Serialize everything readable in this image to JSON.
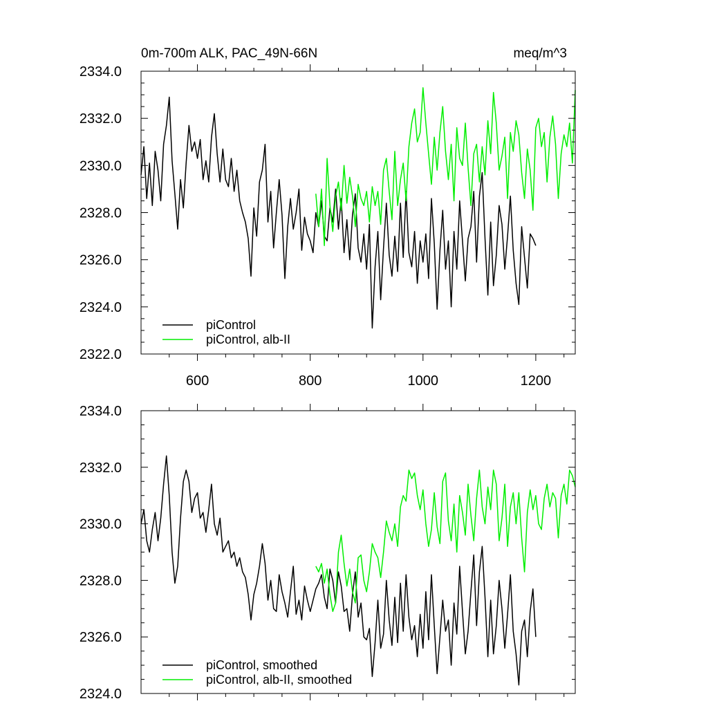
{
  "header": {
    "title": "0m-700m ALK, PAC_49N-66N",
    "units": "meq/m^3"
  },
  "colors": {
    "control": "#000000",
    "alb": "#00ee00"
  },
  "chart_data": [
    {
      "type": "line",
      "title": "0m-700m ALK, PAC_49N-66N",
      "units": "meq/m^3",
      "xlim": [
        500,
        1270
      ],
      "ylim": [
        2322.0,
        2334.0
      ],
      "xticks": [
        600,
        800,
        1000,
        1200
      ],
      "xtick_labels": [
        "600",
        "800",
        "1000",
        "1200"
      ],
      "yticks": [
        2322,
        2324,
        2326,
        2328,
        2330,
        2332,
        2334
      ],
      "ytick_labels": [
        "2322.0",
        "2324.0",
        "2326.0",
        "2328.0",
        "2330.0",
        "2332.0",
        "2334.0"
      ],
      "legend_position": "bottom-left",
      "series": [
        {
          "name": "piControl",
          "color": "#000000",
          "x": [
            500,
            505,
            510,
            515,
            520,
            525,
            530,
            535,
            540,
            545,
            550,
            555,
            560,
            565,
            570,
            575,
            580,
            585,
            590,
            595,
            600,
            605,
            610,
            615,
            620,
            625,
            630,
            635,
            640,
            645,
            650,
            655,
            660,
            665,
            670,
            675,
            680,
            685,
            690,
            695,
            700,
            705,
            710,
            715,
            720,
            725,
            730,
            735,
            740,
            745,
            750,
            755,
            760,
            765,
            770,
            775,
            780,
            785,
            790,
            795,
            800,
            805,
            810,
            815,
            820,
            825,
            830,
            835,
            840,
            845,
            850,
            855,
            860,
            865,
            870,
            875,
            880,
            885,
            890,
            895,
            900,
            905,
            910,
            915,
            920,
            925,
            930,
            935,
            940,
            945,
            950,
            955,
            960,
            965,
            970,
            975,
            980,
            985,
            990,
            995,
            1000,
            1005,
            1010,
            1015,
            1020,
            1025,
            1030,
            1035,
            1040,
            1045,
            1050,
            1055,
            1060,
            1065,
            1070,
            1075,
            1080,
            1085,
            1090,
            1095,
            1100,
            1105,
            1110,
            1115,
            1120,
            1125,
            1130,
            1135,
            1140,
            1145,
            1150,
            1155,
            1160,
            1165,
            1170,
            1175,
            1180,
            1185,
            1190,
            1195,
            1200
          ],
          "y": [
            2329.6,
            2330.8,
            2328.6,
            2330.1,
            2328.3,
            2330.6,
            2329.8,
            2328.5,
            2330.9,
            2331.7,
            2332.9,
            2330.2,
            2328.8,
            2327.3,
            2329.4,
            2328.2,
            2330.1,
            2331.7,
            2330.6,
            2331.0,
            2330.3,
            2331.1,
            2329.4,
            2330.2,
            2329.3,
            2331.2,
            2332.2,
            2330.5,
            2329.3,
            2330.7,
            2329.4,
            2329.1,
            2330.3,
            2328.9,
            2329.8,
            2328.5,
            2328.0,
            2327.6,
            2326.9,
            2325.3,
            2328.2,
            2327.0,
            2329.3,
            2329.8,
            2330.9,
            2327.6,
            2328.9,
            2326.5,
            2328.0,
            2329.4,
            2327.9,
            2325.2,
            2327.4,
            2328.6,
            2327.3,
            2328.0,
            2329.0,
            2326.4,
            2327.8,
            2327.1,
            2326.8,
            2326.3,
            2328.0,
            2327.4,
            2328.5,
            2327.0,
            2326.8,
            2328.2,
            2327.6,
            2329.0,
            2327.3,
            2328.6,
            2326.3,
            2327.7,
            2326.0,
            2327.9,
            2328.8,
            2326.5,
            2325.9,
            2327.1,
            2325.6,
            2327.5,
            2323.1,
            2325.7,
            2327.2,
            2324.3,
            2326.5,
            2328.4,
            2326.2,
            2325.3,
            2327.0,
            2325.5,
            2328.4,
            2326.1,
            2328.9,
            2326.3,
            2325.7,
            2327.2,
            2325.0,
            2326.8,
            2325.9,
            2327.1,
            2325.2,
            2328.6,
            2326.7,
            2323.9,
            2326.4,
            2328.1,
            2325.6,
            2326.8,
            2324.0,
            2327.2,
            2325.6,
            2328.5,
            2326.8,
            2325.1,
            2326.9,
            2327.4,
            2328.9,
            2325.9,
            2328.7,
            2329.7,
            2326.9,
            2324.5,
            2327.6,
            2324.9,
            2326.2,
            2328.3,
            2327.5,
            2325.6,
            2327.0,
            2328.7,
            2326.4,
            2325.0,
            2324.1,
            2327.4,
            2326.1,
            2324.8,
            2327.1,
            2326.9,
            2326.6
          ]
        },
        {
          "name": "piControl, alb-II",
          "color": "#00ee00",
          "x": [
            810,
            815,
            820,
            825,
            830,
            835,
            840,
            845,
            850,
            855,
            860,
            865,
            870,
            875,
            880,
            885,
            890,
            895,
            900,
            905,
            910,
            915,
            920,
            925,
            930,
            935,
            940,
            945,
            950,
            955,
            960,
            965,
            970,
            975,
            980,
            985,
            990,
            995,
            1000,
            1005,
            1010,
            1015,
            1020,
            1025,
            1030,
            1035,
            1040,
            1045,
            1050,
            1055,
            1060,
            1065,
            1070,
            1075,
            1080,
            1085,
            1090,
            1095,
            1100,
            1105,
            1110,
            1115,
            1120,
            1125,
            1130,
            1135,
            1140,
            1145,
            1150,
            1155,
            1160,
            1165,
            1170,
            1175,
            1180,
            1185,
            1190,
            1195,
            1200,
            1205,
            1210,
            1215,
            1220,
            1225,
            1230,
            1235,
            1240,
            1245,
            1250,
            1255,
            1260,
            1265,
            1270
          ],
          "y": [
            2328.8,
            2327.4,
            2329.0,
            2326.6,
            2330.3,
            2328.3,
            2327.2,
            2328.7,
            2329.3,
            2328.1,
            2330.0,
            2328.4,
            2329.5,
            2328.7,
            2327.4,
            2329.2,
            2328.6,
            2328.3,
            2328.9,
            2327.6,
            2329.1,
            2328.3,
            2328.9,
            2327.5,
            2329.8,
            2330.3,
            2328.9,
            2327.7,
            2330.6,
            2328.3,
            2329.4,
            2330.1,
            2328.5,
            2330.8,
            2331.8,
            2332.4,
            2331.0,
            2331.4,
            2333.3,
            2331.8,
            2330.5,
            2329.2,
            2331.2,
            2329.8,
            2331.4,
            2332.5,
            2330.6,
            2329.4,
            2330.9,
            2328.5,
            2331.6,
            2330.3,
            2330.0,
            2331.8,
            2329.9,
            2328.3,
            2330.5,
            2330.9,
            2329.3,
            2330.8,
            2329.6,
            2331.9,
            2330.5,
            2333.1,
            2331.8,
            2329.8,
            2330.4,
            2331.2,
            2328.6,
            2331.4,
            2330.6,
            2331.9,
            2331.3,
            2329.7,
            2328.6,
            2330.7,
            2329.8,
            2328.1,
            2331.6,
            2332.0,
            2330.8,
            2331.4,
            2329.3,
            2331.2,
            2332.1,
            2330.9,
            2328.6,
            2330.5,
            2331.3,
            2330.8,
            2331.8,
            2330.1,
            2333.2
          ]
        }
      ]
    },
    {
      "type": "line",
      "xlim": [
        500,
        1270
      ],
      "ylim": [
        2324.0,
        2334.0
      ],
      "xticks": [
        600,
        800,
        1000,
        1200
      ],
      "yticks": [
        2324,
        2326,
        2328,
        2330,
        2332,
        2334
      ],
      "ytick_labels": [
        "2324.0",
        "2326.0",
        "2328.0",
        "2330.0",
        "2332.0",
        "2334.0"
      ],
      "legend_position": "bottom-left",
      "series": [
        {
          "name": "piControl, smoothed",
          "color": "#000000",
          "x": [
            500,
            505,
            510,
            515,
            520,
            525,
            530,
            535,
            540,
            545,
            550,
            555,
            560,
            565,
            570,
            575,
            580,
            585,
            590,
            595,
            600,
            605,
            610,
            615,
            620,
            625,
            630,
            635,
            640,
            645,
            650,
            655,
            660,
            665,
            670,
            675,
            680,
            685,
            690,
            695,
            700,
            705,
            710,
            715,
            720,
            725,
            730,
            735,
            740,
            745,
            750,
            755,
            760,
            765,
            770,
            775,
            780,
            785,
            790,
            795,
            800,
            805,
            810,
            815,
            820,
            825,
            830,
            835,
            840,
            845,
            850,
            855,
            860,
            865,
            870,
            875,
            880,
            885,
            890,
            895,
            900,
            905,
            910,
            915,
            920,
            925,
            930,
            935,
            940,
            945,
            950,
            955,
            960,
            965,
            970,
            975,
            980,
            985,
            990,
            995,
            1000,
            1005,
            1010,
            1015,
            1020,
            1025,
            1030,
            1035,
            1040,
            1045,
            1050,
            1055,
            1060,
            1065,
            1070,
            1075,
            1080,
            1085,
            1090,
            1095,
            1100,
            1105,
            1110,
            1115,
            1120,
            1125,
            1130,
            1135,
            1140,
            1145,
            1150,
            1155,
            1160,
            1165,
            1170,
            1175,
            1180,
            1185,
            1190,
            1195,
            1200
          ],
          "y": [
            2330.0,
            2330.5,
            2329.4,
            2329.0,
            2329.8,
            2330.4,
            2329.4,
            2330.2,
            2331.4,
            2332.4,
            2331.0,
            2329.0,
            2327.9,
            2328.5,
            2330.2,
            2331.5,
            2331.9,
            2331.5,
            2330.4,
            2330.9,
            2331.1,
            2330.2,
            2330.4,
            2329.7,
            2330.5,
            2331.4,
            2330.0,
            2329.6,
            2330.2,
            2329.0,
            2329.2,
            2329.4,
            2328.8,
            2329.0,
            2328.5,
            2328.8,
            2328.3,
            2328.1,
            2327.5,
            2326.6,
            2327.5,
            2327.9,
            2328.5,
            2329.3,
            2328.6,
            2327.3,
            2328.0,
            2327.0,
            2326.9,
            2328.2,
            2327.6,
            2327.2,
            2326.7,
            2327.6,
            2328.5,
            2326.8,
            2327.3,
            2326.6,
            2327.8,
            2327.3,
            2326.9,
            2327.3,
            2327.7,
            2327.9,
            2328.2,
            2327.4,
            2327.0,
            2328.4,
            2328.0,
            2327.2,
            2328.3,
            2327.8,
            2326.9,
            2327.0,
            2326.2,
            2327.5,
            2328.3,
            2326.7,
            2327.2,
            2326.0,
            2325.9,
            2326.3,
            2324.6,
            2325.8,
            2327.3,
            2325.6,
            2326.1,
            2328.0,
            2326.6,
            2325.7,
            2327.4,
            2325.8,
            2327.9,
            2326.2,
            2328.2,
            2326.7,
            2325.9,
            2326.4,
            2325.3,
            2326.8,
            2325.6,
            2327.6,
            2325.9,
            2328.2,
            2326.4,
            2324.7,
            2326.0,
            2327.3,
            2326.2,
            2326.6,
            2325.0,
            2327.2,
            2326.1,
            2328.5,
            2326.9,
            2325.4,
            2326.2,
            2327.6,
            2328.9,
            2326.4,
            2328.3,
            2329.2,
            2327.4,
            2325.3,
            2327.3,
            2325.4,
            2326.4,
            2328.0,
            2327.0,
            2325.6,
            2326.8,
            2328.2,
            2326.2,
            2325.4,
            2324.3,
            2326.2,
            2326.6,
            2325.3,
            2326.9,
            2327.7,
            2326.0
          ]
        },
        {
          "name": "piControl, alb-II, smoothed",
          "color": "#00ee00",
          "x": [
            810,
            815,
            820,
            825,
            830,
            835,
            840,
            845,
            850,
            855,
            860,
            865,
            870,
            875,
            880,
            885,
            890,
            895,
            900,
            905,
            910,
            915,
            920,
            925,
            930,
            935,
            940,
            945,
            950,
            955,
            960,
            965,
            970,
            975,
            980,
            985,
            990,
            995,
            1000,
            1005,
            1010,
            1015,
            1020,
            1025,
            1030,
            1035,
            1040,
            1045,
            1050,
            1055,
            1060,
            1065,
            1070,
            1075,
            1080,
            1085,
            1090,
            1095,
            1100,
            1105,
            1110,
            1115,
            1120,
            1125,
            1130,
            1135,
            1140,
            1145,
            1150,
            1155,
            1160,
            1165,
            1170,
            1175,
            1180,
            1185,
            1190,
            1195,
            1200,
            1205,
            1210,
            1215,
            1220,
            1225,
            1230,
            1235,
            1240,
            1245,
            1250,
            1255,
            1260,
            1265,
            1270
          ],
          "y": [
            2328.5,
            2328.3,
            2328.6,
            2327.9,
            2328.4,
            2327.5,
            2326.9,
            2327.2,
            2329.0,
            2329.6,
            2328.6,
            2327.8,
            2328.4,
            2327.6,
            2327.2,
            2328.8,
            2328.9,
            2328.0,
            2327.6,
            2328.3,
            2329.3,
            2329.0,
            2328.8,
            2328.1,
            2329.0,
            2330.1,
            2329.7,
            2329.4,
            2330.0,
            2329.2,
            2330.6,
            2331.0,
            2330.8,
            2331.9,
            2331.6,
            2331.8,
            2331.0,
            2330.5,
            2331.2,
            2330.0,
            2329.2,
            2329.8,
            2331.1,
            2329.9,
            2329.3,
            2331.5,
            2331.8,
            2330.1,
            2329.4,
            2330.7,
            2329.0,
            2331.0,
            2330.4,
            2329.6,
            2331.4,
            2330.3,
            2329.4,
            2330.9,
            2331.9,
            2330.6,
            2330.0,
            2331.3,
            2330.5,
            2331.9,
            2331.4,
            2329.4,
            2330.2,
            2331.4,
            2329.2,
            2330.6,
            2331.1,
            2330.0,
            2331.1,
            2329.5,
            2328.3,
            2330.4,
            2331.2,
            2330.5,
            2331.0,
            2330.0,
            2329.8,
            2330.9,
            2331.4,
            2330.6,
            2331.1,
            2330.9,
            2329.5,
            2331.0,
            2331.4,
            2330.7,
            2331.9,
            2331.7,
            2331.3
          ]
        }
      ]
    }
  ]
}
